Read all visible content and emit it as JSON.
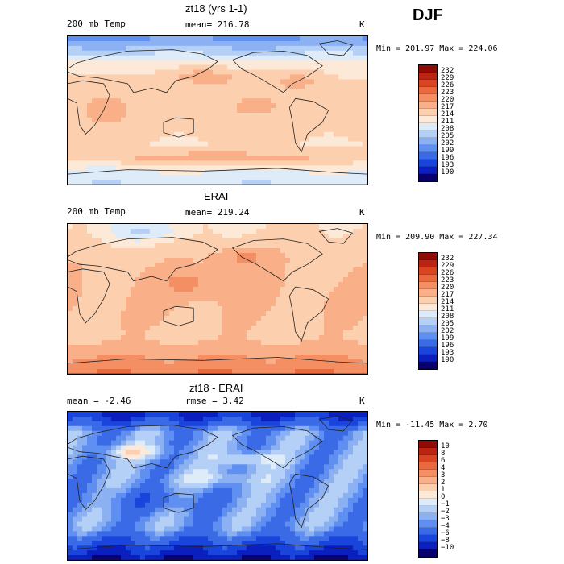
{
  "season": "DJF",
  "palettes": {
    "temp": [
      "#07006e",
      "#0a1fbe",
      "#1a45dc",
      "#3b6ae6",
      "#5f8ff0",
      "#8cb1f3",
      "#b5d0f7",
      "#deebf9",
      "#fde9d7",
      "#fccfae",
      "#f9b088",
      "#f48e63",
      "#ea6a3f",
      "#d84520",
      "#bb2410",
      "#8f0b06"
    ],
    "diff": [
      "#07006e",
      "#0a1fbe",
      "#1a45dc",
      "#3b6ae6",
      "#5f8ff0",
      "#8cb1f3",
      "#b5d0f7",
      "#deebf9",
      "#fde9d7",
      "#fccfae",
      "#f9b088",
      "#f48e63",
      "#ea6a3f",
      "#d84520",
      "#bb2410",
      "#8f0b06"
    ]
  },
  "panels": [
    {
      "id": "model",
      "title": "zt18 (yrs 1-1)",
      "left_label": "200 mb Temp",
      "center_label": "mean= 216.78",
      "units": "K",
      "minmax": "Min = 201.97 Max = 224.06",
      "field": "model",
      "colorbar": [
        "232",
        "229",
        "226",
        "223",
        "220",
        "217",
        "214",
        "211",
        "208",
        "205",
        "202",
        "199",
        "196",
        "193",
        "190"
      ]
    },
    {
      "id": "obs",
      "title": "ERAI",
      "left_label": "200 mb Temp",
      "center_label": "mean= 219.24",
      "units": "K",
      "minmax": "Min = 209.90 Max = 227.34",
      "field": "obs",
      "colorbar": [
        "232",
        "229",
        "226",
        "223",
        "220",
        "217",
        "214",
        "211",
        "208",
        "205",
        "202",
        "199",
        "196",
        "193",
        "190"
      ]
    },
    {
      "id": "diff",
      "title": "zt18 - ERAI",
      "left_label": "mean =  -2.46",
      "center_label": "rmse =   3.42",
      "units": "K",
      "minmax": "Min = -11.45 Max =   2.70",
      "field": "diff",
      "colorbar": [
        "10",
        "8",
        "6",
        "4",
        "3",
        "2",
        "1",
        "0",
        "−1",
        "−2",
        "−3",
        "−4",
        "−6",
        "−8",
        "−10"
      ]
    }
  ]
}
